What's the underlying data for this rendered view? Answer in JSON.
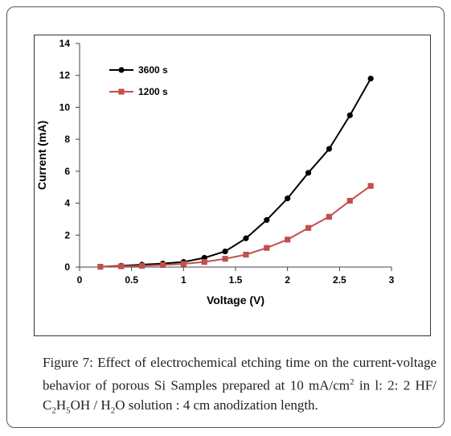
{
  "chart_data": {
    "type": "line",
    "title": "",
    "xlabel": "Voltage (V)",
    "ylabel": "Current (mA)",
    "xlim": [
      0,
      3
    ],
    "ylim": [
      0,
      14
    ],
    "x_ticks": [
      "0",
      "0.5",
      "1",
      "1.5",
      "2",
      "2.5",
      "3"
    ],
    "y_ticks": [
      "0",
      "2",
      "4",
      "6",
      "8",
      "10",
      "12",
      "14"
    ],
    "grid": false,
    "legend_position": "top-left",
    "series": [
      {
        "name": "3600 s",
        "color": "#000000",
        "marker": "circle",
        "x": [
          0.2,
          0.4,
          0.6,
          0.8,
          1.0,
          1.2,
          1.4,
          1.6,
          1.8,
          2.0,
          2.2,
          2.4,
          2.6,
          2.8
        ],
        "y": [
          0.02,
          0.08,
          0.15,
          0.22,
          0.32,
          0.58,
          0.98,
          1.8,
          2.95,
          4.3,
          5.9,
          7.4,
          9.5,
          11.8
        ]
      },
      {
        "name": "1200 s",
        "color": "#c0504d",
        "marker": "square",
        "x": [
          0.2,
          0.4,
          0.6,
          0.8,
          1.0,
          1.2,
          1.4,
          1.6,
          1.8,
          2.0,
          2.2,
          2.4,
          2.6,
          2.8
        ],
        "y": [
          0.02,
          0.05,
          0.08,
          0.13,
          0.2,
          0.32,
          0.52,
          0.78,
          1.2,
          1.72,
          2.45,
          3.15,
          4.15,
          5.08
        ]
      }
    ]
  },
  "caption": {
    "label": "Figure 7:",
    "text_a": " Effect of electrochemical etching time on the current-voltage behavior of porous Si Samples prepared at 10 mA/cm",
    "sup_2": "2",
    "text_b": " in l: 2: 2 HF/ C",
    "sub_2": "2",
    "text_h": "H",
    "sub_5": "5",
    "text_c": "OH / H",
    "sub_2b": "2",
    "text_d": "O solution : 4 cm anodization length."
  }
}
